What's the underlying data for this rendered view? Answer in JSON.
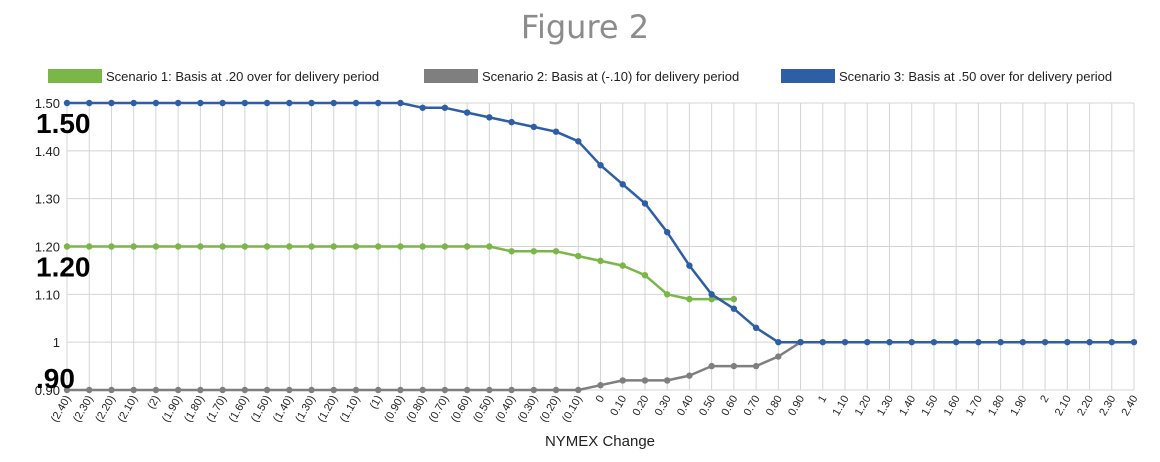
{
  "chart_data": {
    "type": "line",
    "title": "Figure 2",
    "xlabel": "NYMEX Change",
    "ylabel": "",
    "ylim": [
      0.9,
      1.5
    ],
    "y_ticks": [
      "0.90",
      "1",
      "1.10",
      "1.20",
      "1.30",
      "1.40",
      "1.50"
    ],
    "x_tick_labels": [
      "(2.40)",
      "(2.30)",
      "(2.20)",
      "(2.10)",
      "(2)",
      "(1.90)",
      "(1.80)",
      "(1.70)",
      "(1.60)",
      "(1.50)",
      "(1.40)",
      "(1.30)",
      "(1.20)",
      "(1.10)",
      "(1)",
      "(0.90)",
      "(0.80)",
      "(0.70)",
      "(0.60)",
      "(0.50)",
      "(0.40)",
      "(0.30)",
      "(0.20)",
      "(0.10)",
      "0",
      "0.10",
      "0.20",
      "0.30",
      "0.40",
      "0.50",
      "0.60",
      "0.70",
      "0.80",
      "0.90",
      "1",
      "1.10",
      "1.20",
      "1.30",
      "1.40",
      "1.50",
      "1.60",
      "1.70",
      "1.80",
      "1.90",
      "2",
      "2.10",
      "2.20",
      "2.30",
      "2.40"
    ],
    "x_range": [
      -2.4,
      2.4
    ],
    "legend_position": "top",
    "series": [
      {
        "name": "Scenario 1: Basis at .20 over for delivery period",
        "color": "#7ab648",
        "x": [
          -2.4,
          -2.3,
          -2.2,
          -2.1,
          -2.0,
          -1.9,
          -1.8,
          -1.7,
          -1.6,
          -1.5,
          -1.4,
          -1.3,
          -1.2,
          -1.1,
          -1.0,
          -0.9,
          -0.8,
          -0.7,
          -0.6,
          -0.5,
          -0.4,
          -0.3,
          -0.2,
          -0.1,
          0.0,
          0.1,
          0.2,
          0.3,
          0.4,
          0.5,
          0.6
        ],
        "y": [
          1.2,
          1.2,
          1.2,
          1.2,
          1.2,
          1.2,
          1.2,
          1.2,
          1.2,
          1.2,
          1.2,
          1.2,
          1.2,
          1.2,
          1.2,
          1.2,
          1.2,
          1.2,
          1.2,
          1.2,
          1.19,
          1.19,
          1.19,
          1.18,
          1.17,
          1.16,
          1.14,
          1.1,
          1.09,
          1.09,
          1.09
        ]
      },
      {
        "name": "Scenario 2: Basis at (-.10) for delivery period",
        "color": "#7f7f7f",
        "x": [
          -2.4,
          -2.3,
          -2.2,
          -2.1,
          -2.0,
          -1.9,
          -1.8,
          -1.7,
          -1.6,
          -1.5,
          -1.4,
          -1.3,
          -1.2,
          -1.1,
          -1.0,
          -0.9,
          -0.8,
          -0.7,
          -0.6,
          -0.5,
          -0.4,
          -0.3,
          -0.2,
          -0.1,
          0.0,
          0.1,
          0.2,
          0.3,
          0.4,
          0.5,
          0.6,
          0.7,
          0.8,
          0.9
        ],
        "y": [
          0.9,
          0.9,
          0.9,
          0.9,
          0.9,
          0.9,
          0.9,
          0.9,
          0.9,
          0.9,
          0.9,
          0.9,
          0.9,
          0.9,
          0.9,
          0.9,
          0.9,
          0.9,
          0.9,
          0.9,
          0.9,
          0.9,
          0.9,
          0.9,
          0.91,
          0.92,
          0.92,
          0.92,
          0.93,
          0.95,
          0.95,
          0.95,
          0.97,
          1.0
        ]
      },
      {
        "name": "Scenario 3: Basis at .50 over for delivery period",
        "color": "#2d5ea6",
        "x": [
          -2.4,
          -2.3,
          -2.2,
          -2.1,
          -2.0,
          -1.9,
          -1.8,
          -1.7,
          -1.6,
          -1.5,
          -1.4,
          -1.3,
          -1.2,
          -1.1,
          -1.0,
          -0.9,
          -0.8,
          -0.7,
          -0.6,
          -0.5,
          -0.4,
          -0.3,
          -0.2,
          -0.1,
          0.0,
          0.1,
          0.2,
          0.3,
          0.4,
          0.5,
          0.6,
          0.7,
          0.8,
          0.9,
          1.0,
          1.1,
          1.2,
          1.3,
          1.4,
          1.5,
          1.6,
          1.7,
          1.8,
          1.9,
          2.0,
          2.1,
          2.2,
          2.3,
          2.4
        ],
        "y": [
          1.5,
          1.5,
          1.5,
          1.5,
          1.5,
          1.5,
          1.5,
          1.5,
          1.5,
          1.5,
          1.5,
          1.5,
          1.5,
          1.5,
          1.5,
          1.5,
          1.49,
          1.49,
          1.48,
          1.47,
          1.46,
          1.45,
          1.44,
          1.42,
          1.37,
          1.33,
          1.29,
          1.23,
          1.16,
          1.1,
          1.07,
          1.03,
          1.0,
          1.0,
          1.0,
          1.0,
          1.0,
          1.0,
          1.0,
          1.0,
          1.0,
          1.0,
          1.0,
          1.0,
          1.0,
          1.0,
          1.0,
          1.0,
          1.0
        ]
      }
    ],
    "annotations": [
      {
        "text": "1.50",
        "y": 1.5
      },
      {
        "text": "1.20",
        "y": 1.2
      },
      {
        "text": ".90",
        "y": 0.9
      }
    ]
  }
}
